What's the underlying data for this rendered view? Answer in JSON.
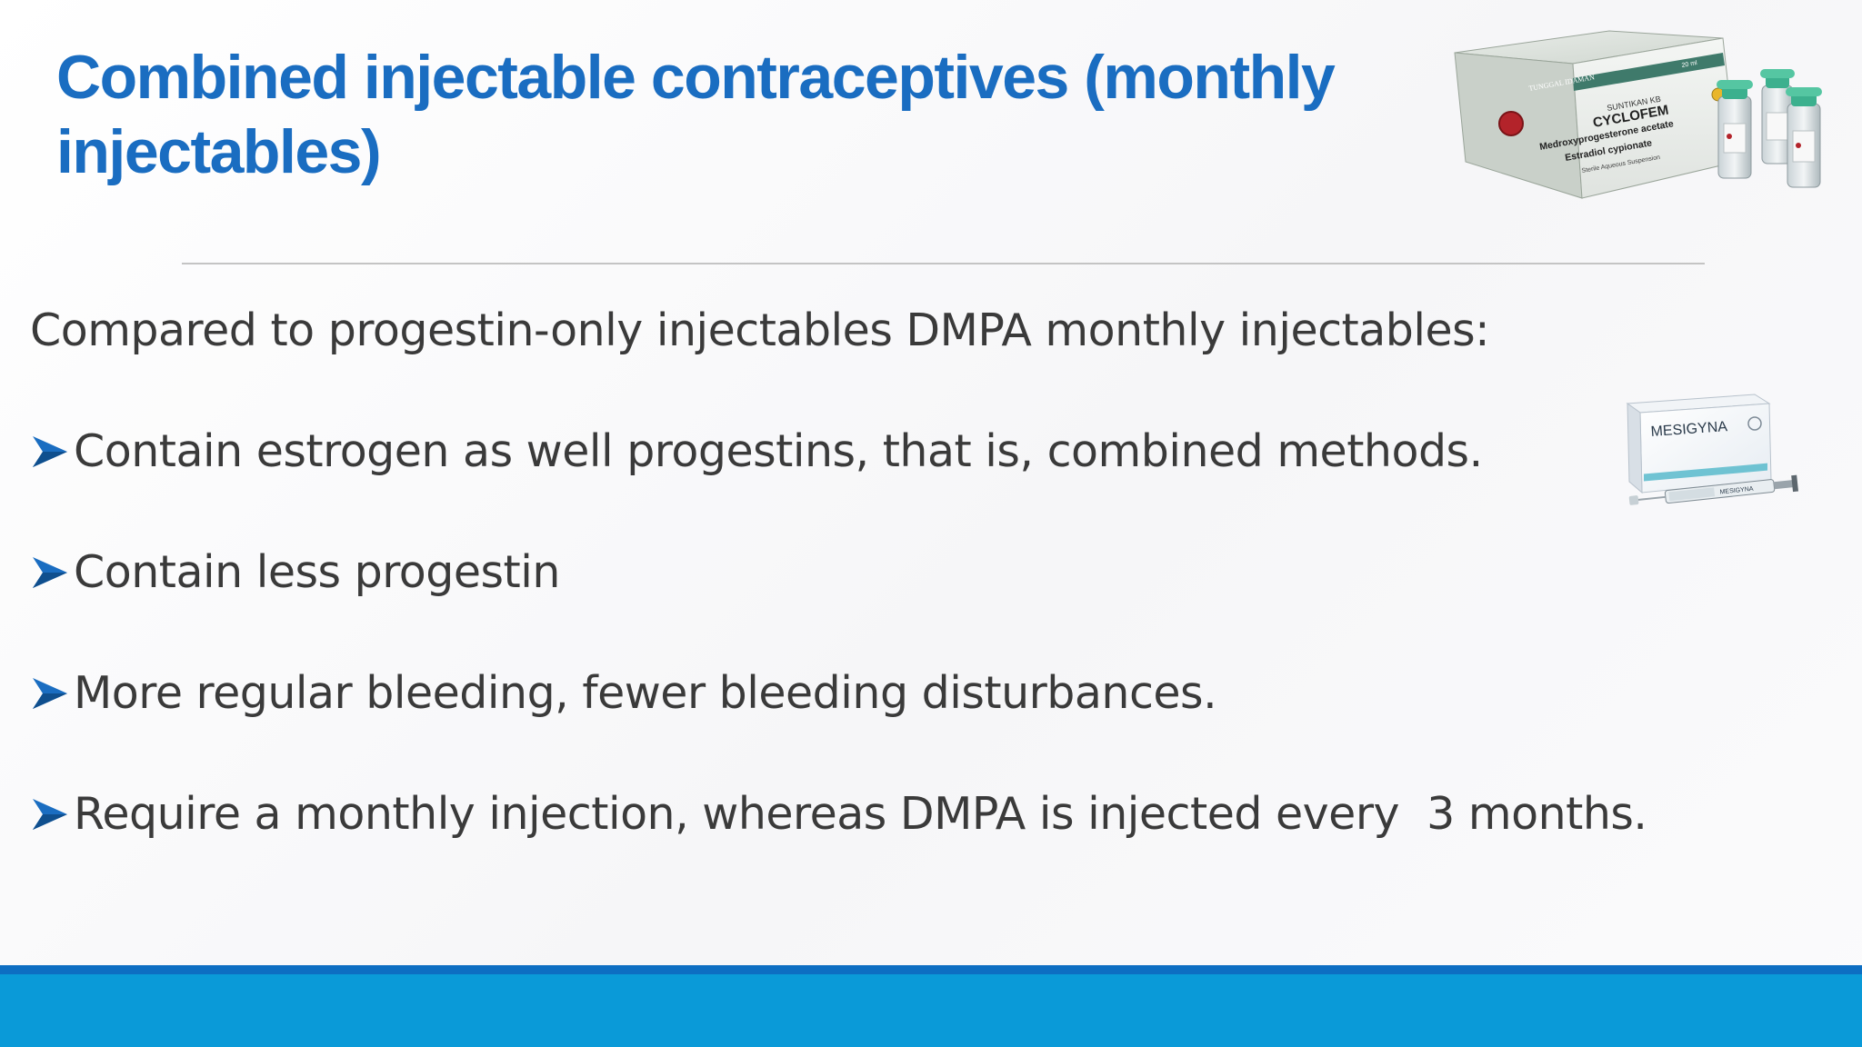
{
  "slide": {
    "title": "Combined injectable contraceptives (monthly injectables)",
    "intro": "Compared to progestin-only injectables DMPA monthly injectables:",
    "bullets": [
      "Contain estrogen as well progestins, that is, combined methods.",
      "Contain less progestin",
      "More regular bleeding, fewer bleeding disturbances.",
      "Require a monthly injection, whereas DMPA is injected every  3 months."
    ],
    "bullet_icon": "arrowhead-bullet-icon"
  },
  "images": {
    "cyclofem_box": {
      "header": "TUNGGAL IDAMAN",
      "line1": "SUNTIKAN KB",
      "brand": "CYCLOFEM",
      "ingredient1": "Medroxyprogesterone acetate",
      "ingredient2": "Estradiol cypionate",
      "note": "Sterile Aqueous Suspension",
      "volume": "20 ml"
    },
    "mesigyna_box": {
      "brand": "MESIGYNA",
      "syringe_label": "MESIGYNA"
    }
  },
  "colors": {
    "title": "#1a6dc1",
    "body_text": "#3a3a3a",
    "bullet": "#1a6dc1",
    "footer_band": "#0a9ad8",
    "footer_stripe": "#0d6ec2",
    "divider": "#c4c4c4"
  }
}
